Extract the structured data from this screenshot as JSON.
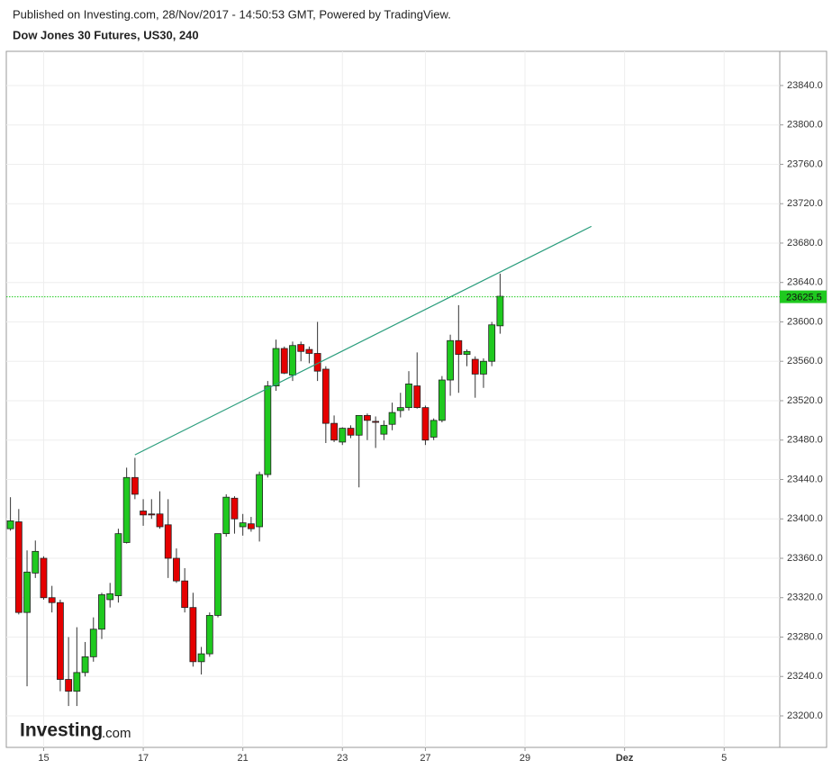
{
  "header": {
    "published": "Published on Investing.com, 28/Nov/2017 - 14:50:53 GMT, Powered by TradingView.",
    "symbol": "Dow Jones 30 Futures, US30, 240"
  },
  "chart_data": {
    "type": "candlestick",
    "up_color": "#1fc91f",
    "down_color": "#e50000",
    "open": [
      23390,
      23397,
      23305,
      23345,
      23360,
      23320,
      23315,
      23237,
      23225,
      23244,
      23260,
      23288,
      23318,
      23322,
      23376,
      23442,
      23408,
      23405,
      23405,
      23394,
      23360,
      23337,
      23310,
      23255,
      23263,
      23302,
      23385,
      23421,
      23392,
      23395,
      23392,
      23445,
      23535,
      23573,
      23546,
      23577,
      23572,
      23568,
      23552,
      23497,
      23478,
      23492,
      23485,
      23505,
      23499,
      23486,
      23496,
      23510,
      23513,
      23535,
      23513,
      23483,
      23500,
      23541,
      23581,
      23567,
      23562,
      23547,
      23560,
      23596
    ],
    "high": [
      23422,
      23410,
      23368,
      23378,
      23362,
      23332,
      23318,
      23280,
      23290,
      23275,
      23300,
      23325,
      23335,
      23390,
      23452,
      23462,
      23420,
      23420,
      23428,
      23420,
      23370,
      23350,
      23325,
      23270,
      23305,
      23385,
      23425,
      23423,
      23405,
      23402,
      23448,
      23540,
      23582,
      23575,
      23580,
      23580,
      23575,
      23600,
      23555,
      23505,
      23493,
      23495,
      23505,
      23507,
      23504,
      23500,
      23518,
      23528,
      23550,
      23569,
      23515,
      23502,
      23545,
      23587,
      23617,
      23572,
      23565,
      23563,
      23600,
      23649
    ],
    "low": [
      23388,
      23303,
      23230,
      23340,
      23318,
      23305,
      23225,
      23210,
      23210,
      23240,
      23255,
      23278,
      23310,
      23315,
      23375,
      23420,
      23393,
      23400,
      23390,
      23340,
      23335,
      23305,
      23250,
      23242,
      23260,
      23300,
      23382,
      23385,
      23383,
      23387,
      23377,
      23442,
      23530,
      23547,
      23540,
      23560,
      23558,
      23540,
      23477,
      23478,
      23475,
      23482,
      23432,
      23480,
      23472,
      23480,
      23490,
      23503,
      23510,
      23512,
      23475,
      23480,
      23498,
      23525,
      23528,
      23555,
      23523,
      23533,
      23555,
      23588
    ],
    "close": [
      23398,
      23305,
      23346,
      23367,
      23320,
      23315,
      23237,
      23225,
      23244,
      23260,
      23288,
      23323,
      23324,
      23385,
      23442,
      23425,
      23404,
      23404,
      23392,
      23360,
      23337,
      23310,
      23255,
      23263,
      23302,
      23385,
      23422,
      23400,
      23396,
      23390,
      23445,
      23535,
      23573,
      23548,
      23576,
      23570,
      23568,
      23550,
      23497,
      23480,
      23492,
      23485,
      23505,
      23500,
      23498,
      23495,
      23508,
      23513,
      23537,
      23513,
      23480,
      23500,
      23541,
      23581,
      23567,
      23570,
      23547,
      23560,
      23597,
      23626
    ],
    "trend_line": {
      "x": [
        15,
        70
      ],
      "y": [
        23465,
        23697
      ],
      "color": "#2a9d7c"
    },
    "last_price": 23625.5,
    "ylim": [
      23168,
      23874.7
    ],
    "yticks": [
      {
        "value": 23200,
        "label": "23200.0"
      },
      {
        "value": 23240,
        "label": "23240.0"
      },
      {
        "value": 23280,
        "label": "23280.0"
      },
      {
        "value": 23320,
        "label": "23320.0"
      },
      {
        "value": 23360,
        "label": "23360.0"
      },
      {
        "value": 23400,
        "label": "23400.0"
      },
      {
        "value": 23440,
        "label": "23440.0"
      },
      {
        "value": 23480,
        "label": "23480.0"
      },
      {
        "value": 23520,
        "label": "23520.0"
      },
      {
        "value": 23560,
        "label": "23560.0"
      },
      {
        "value": 23600,
        "label": "23600.0"
      },
      {
        "value": 23640,
        "label": "23640.0"
      },
      {
        "value": 23680,
        "label": "23680.0"
      },
      {
        "value": 23720,
        "label": "23720.0"
      },
      {
        "value": 23760,
        "label": "23760.0"
      },
      {
        "value": 23800,
        "label": "23800.0"
      },
      {
        "value": 23840,
        "label": "23840.0"
      }
    ],
    "xlim": [
      -0.5,
      92.7
    ],
    "xticks": [
      {
        "value": 4,
        "label": "15"
      },
      {
        "value": 16,
        "label": "17"
      },
      {
        "value": 28,
        "label": "21"
      },
      {
        "value": 40,
        "label": "23"
      },
      {
        "value": 50,
        "label": "27"
      },
      {
        "value": 62,
        "label": "29"
      },
      {
        "value": 74,
        "label": "Dez"
      },
      {
        "value": 86,
        "label": "5"
      }
    ],
    "grid": true,
    "watermark": {
      "brand": "Investing",
      "suffix": ".com"
    }
  }
}
